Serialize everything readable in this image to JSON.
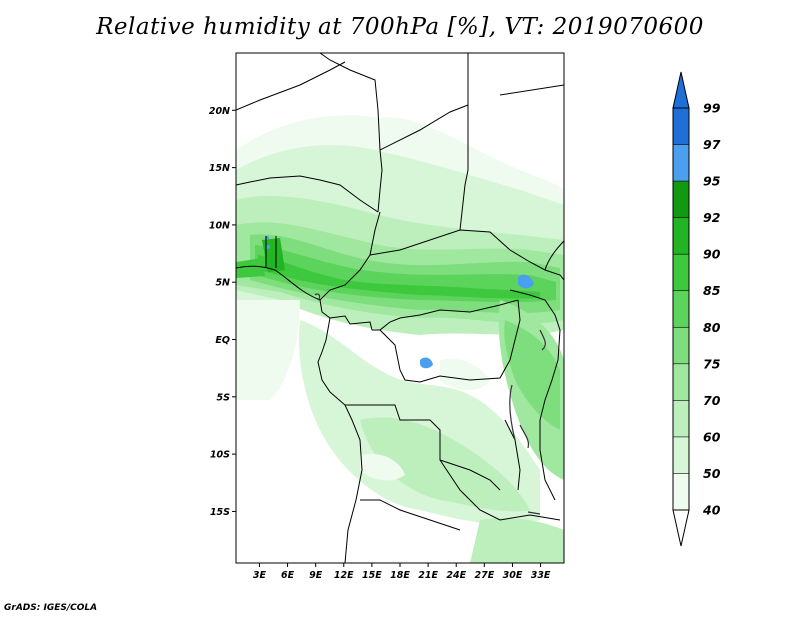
{
  "title": "Relative humidity at 700hPa [%], VT: 2019070600",
  "credit": "GrADS: IGES/COLA",
  "map": {
    "lat_range": [
      -19.5,
      25
    ],
    "lon_range": [
      0.5,
      35.5
    ],
    "lat_ticks": [
      {
        "value": 20,
        "label": "20N"
      },
      {
        "value": 15,
        "label": "15N"
      },
      {
        "value": 10,
        "label": "10N"
      },
      {
        "value": 5,
        "label": "5N"
      },
      {
        "value": 0,
        "label": "EQ"
      },
      {
        "value": -5,
        "label": "5S"
      },
      {
        "value": -10,
        "label": "10S"
      },
      {
        "value": -15,
        "label": "15S"
      }
    ],
    "lon_ticks": [
      {
        "value": 3,
        "label": "3E"
      },
      {
        "value": 6,
        "label": "6E"
      },
      {
        "value": 9,
        "label": "9E"
      },
      {
        "value": 12,
        "label": "12E"
      },
      {
        "value": 15,
        "label": "15E"
      },
      {
        "value": 18,
        "label": "18E"
      },
      {
        "value": 21,
        "label": "21E"
      },
      {
        "value": 24,
        "label": "24E"
      },
      {
        "value": 27,
        "label": "27E"
      },
      {
        "value": 30,
        "label": "30E"
      },
      {
        "value": 33,
        "label": "33E"
      }
    ]
  },
  "colorbar": {
    "levels": [
      {
        "label": "40",
        "color": "#eefbee"
      },
      {
        "label": "50",
        "color": "#d7f5d7"
      },
      {
        "label": "60",
        "color": "#bdefbd"
      },
      {
        "label": "70",
        "color": "#a0e8a0"
      },
      {
        "label": "75",
        "color": "#7ede7e"
      },
      {
        "label": "80",
        "color": "#5cd45c"
      },
      {
        "label": "85",
        "color": "#3ec83e"
      },
      {
        "label": "90",
        "color": "#22b422"
      },
      {
        "label": "92",
        "color": "#119a11"
      },
      {
        "label": "95",
        "color": "#4aa0ee"
      },
      {
        "label": "97",
        "color": "#1e6fd8"
      },
      {
        "label": "99",
        "color": "#1e6fd8"
      }
    ],
    "bottom_color": "#ffffff",
    "top_color": "#1e6fd8"
  }
}
